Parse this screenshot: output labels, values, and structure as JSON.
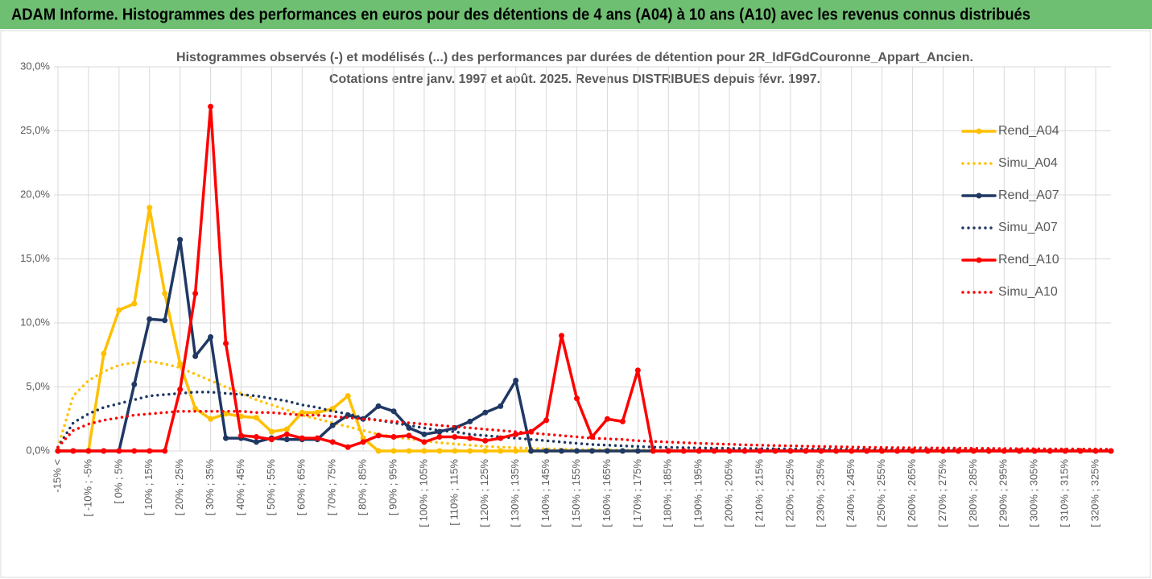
{
  "header": "ADAM Informe. Histogrammes des performances en euros pour des détentions de 4 ans (A04) à 10 ans (A10) avec les revenus connus distribués",
  "chart_data": {
    "type": "line",
    "title": "Histogrammes observés (-) et modélisés (...) des performances par durées de détention pour 2R_IdFGdCouronne_Appart_Ancien.",
    "subtitle": "Cotations entre janv. 1997 et août. 2025. Revenus DISTRIBUES depuis févr. 1997.",
    "categories": [
      "-15% <",
      null,
      "[ -10% ; -5%",
      null,
      "[ 0% ; 5%",
      null,
      "[ 10% ; 15%",
      null,
      "[ 20% ; 25%",
      null,
      "[ 30% ; 35%",
      null,
      "[ 40% ; 45%",
      null,
      "[ 50% ; 55%",
      null,
      "[ 60% ; 65%",
      null,
      "[ 70% ; 75%",
      null,
      "[ 80% ; 85%",
      null,
      "[ 90% ; 95%",
      null,
      "[ 100% ; 105%",
      null,
      "[ 110% ; 115%",
      null,
      "[ 120% ; 125%",
      null,
      "[ 130% ; 135%",
      null,
      "[ 140% ; 145%",
      null,
      "[ 150% ; 155%",
      null,
      "[ 160% ; 165%",
      null,
      "[ 170% ; 175%",
      null,
      "[ 180% ; 185%",
      null,
      "[ 190% ; 195%",
      null,
      "[ 200% ; 205%",
      null,
      "[ 210% ; 215%",
      null,
      "[ 220% ; 225%",
      null,
      "[ 230% ; 235%",
      null,
      "[ 240% ; 245%",
      null,
      "[ 250% ; 255%",
      null,
      "[ 260% ; 265%",
      null,
      "[ 270% ; 275%",
      null,
      "[ 280% ; 285%",
      null,
      "[ 290% ; 295%",
      null,
      "[ 300% ; 305%",
      null,
      "[ 310% ; 315%",
      null,
      "[ 320% ; 325%",
      null
    ],
    "series": [
      {
        "name": "Rend_A04",
        "color": "#ffc000",
        "line_style": "solid",
        "values": [
          0,
          0,
          0,
          7.6,
          11,
          11.5,
          19,
          12.3,
          6.8,
          3.3,
          2.5,
          2.9,
          2.7,
          2.6,
          1.5,
          1.7,
          3,
          3,
          3.3,
          4.3,
          1,
          0,
          0,
          0,
          0,
          0,
          0,
          0,
          0,
          0,
          0,
          0,
          0,
          0,
          0,
          0,
          0,
          0,
          0,
          0,
          0,
          0,
          0,
          0,
          0,
          0,
          0,
          0,
          0,
          0,
          0,
          0,
          0,
          0,
          0,
          0,
          0,
          0,
          0,
          0,
          0,
          0,
          0,
          0,
          0,
          0,
          0,
          0,
          0,
          0
        ]
      },
      {
        "name": "Simu_A04",
        "color": "#ffc000",
        "line_style": "dotted",
        "values": [
          0.3,
          4.3,
          5.5,
          6.2,
          6.7,
          6.9,
          7,
          6.8,
          6.5,
          6,
          5.5,
          5,
          4.5,
          4,
          3.6,
          3.2,
          2.8,
          2.5,
          2.2,
          1.9,
          1.6,
          1.3,
          1.1,
          0.95,
          0.8,
          0.65,
          0.55,
          0.45,
          0.35,
          0.3,
          0.25,
          0.2,
          0.17,
          0.14,
          0.12,
          0.1,
          0.08,
          0.07,
          0.06,
          0.05,
          0.04,
          0.03,
          0.03,
          0.02,
          0.02,
          0.02,
          0.01,
          0.01,
          0.01,
          0.01,
          0,
          0,
          0,
          0,
          0,
          0,
          0,
          0,
          0,
          0,
          0,
          0,
          0,
          0,
          0,
          0,
          0,
          0,
          0,
          0
        ]
      },
      {
        "name": "Rend_A07",
        "color": "#1f3864",
        "line_style": "solid",
        "values": [
          0,
          0,
          0,
          0,
          0,
          5.2,
          10.3,
          10.2,
          16.5,
          7.4,
          8.9,
          1,
          1,
          0.7,
          1,
          0.9,
          0.9,
          0.9,
          2,
          2.8,
          2.5,
          3.5,
          3.1,
          1.8,
          1.3,
          1.5,
          1.8,
          2.3,
          3,
          3.5,
          5.5,
          0,
          0,
          0,
          0,
          0,
          0,
          0,
          0,
          0,
          0,
          0,
          0,
          0,
          0,
          0,
          0,
          0,
          0,
          0,
          0,
          0,
          0,
          0,
          0,
          0,
          0,
          0,
          0,
          0,
          0,
          0,
          0,
          0,
          0,
          0,
          0,
          0,
          0,
          0
        ]
      },
      {
        "name": "Simu_A07",
        "color": "#1f3864",
        "line_style": "dotted",
        "values": [
          0.3,
          2.2,
          2.9,
          3.4,
          3.7,
          4,
          4.3,
          4.4,
          4.5,
          4.6,
          4.6,
          4.5,
          4.4,
          4.3,
          4.1,
          3.9,
          3.6,
          3.4,
          3.1,
          2.9,
          2.6,
          2.4,
          2.2,
          2,
          1.8,
          1.6,
          1.5,
          1.3,
          1.2,
          1.1,
          1,
          0.9,
          0.8,
          0.7,
          0.6,
          0.5,
          0.45,
          0.4,
          0.35,
          0.3,
          0.28,
          0.26,
          0.24,
          0.22,
          0.2,
          0.19,
          0.18,
          0.17,
          0.16,
          0.15,
          0.14,
          0.13,
          0.12,
          0.11,
          0.1,
          0.1,
          0.09,
          0.09,
          0.08,
          0.08,
          0.07,
          0.07,
          0.06,
          0.06,
          0.05,
          0.05,
          0.05,
          0.04,
          0.04,
          0.04
        ]
      },
      {
        "name": "Rend_A10",
        "color": "#ff0000",
        "line_style": "solid",
        "values": [
          0,
          0,
          0,
          0,
          0,
          0,
          0,
          0,
          4.8,
          12.3,
          26.9,
          8.4,
          1.2,
          1.1,
          0.9,
          1.3,
          1,
          1,
          0.7,
          0.3,
          0.7,
          1.2,
          1.1,
          1.2,
          0.7,
          1.1,
          1.1,
          1,
          0.8,
          1,
          1.3,
          1.5,
          2.4,
          9,
          4.1,
          1.1,
          2.5,
          2.3,
          6.3,
          0,
          0,
          0,
          0,
          0,
          0,
          0,
          0,
          0,
          0,
          0,
          0,
          0,
          0,
          0,
          0,
          0,
          0,
          0,
          0,
          0,
          0,
          0,
          0,
          0,
          0,
          0,
          0,
          0,
          0,
          0
        ]
      },
      {
        "name": "Simu_A10",
        "color": "#ff0000",
        "line_style": "dotted",
        "values": [
          0.3,
          1.6,
          2.1,
          2.4,
          2.6,
          2.8,
          2.9,
          3,
          3.1,
          3.1,
          3.1,
          3.1,
          3.1,
          3,
          3,
          2.9,
          2.8,
          2.8,
          2.7,
          2.6,
          2.5,
          2.4,
          2.3,
          2.2,
          2.1,
          2,
          1.9,
          1.8,
          1.7,
          1.6,
          1.5,
          1.4,
          1.3,
          1.2,
          1.1,
          1,
          0.95,
          0.9,
          0.8,
          0.75,
          0.7,
          0.65,
          0.6,
          0.56,
          0.52,
          0.48,
          0.45,
          0.42,
          0.4,
          0.37,
          0.35,
          0.33,
          0.31,
          0.29,
          0.27,
          0.26,
          0.25,
          0.24,
          0.23,
          0.22,
          0.21,
          0.2,
          0.19,
          0.18,
          0.17,
          0.16,
          0.16,
          0.15,
          0.15,
          0.14
        ]
      }
    ],
    "ylim": [
      0,
      30
    ],
    "yticks": [
      {
        "value": 0,
        "label": "0,0%"
      },
      {
        "value": 5,
        "label": "5,0%"
      },
      {
        "value": 10,
        "label": "10,0%"
      },
      {
        "value": 15,
        "label": "15,0%"
      },
      {
        "value": 20,
        "label": "20,0%"
      },
      {
        "value": 25,
        "label": "25,0%"
      },
      {
        "value": 30,
        "label": "30,0%"
      }
    ],
    "grid": true,
    "legend_position": "right"
  }
}
